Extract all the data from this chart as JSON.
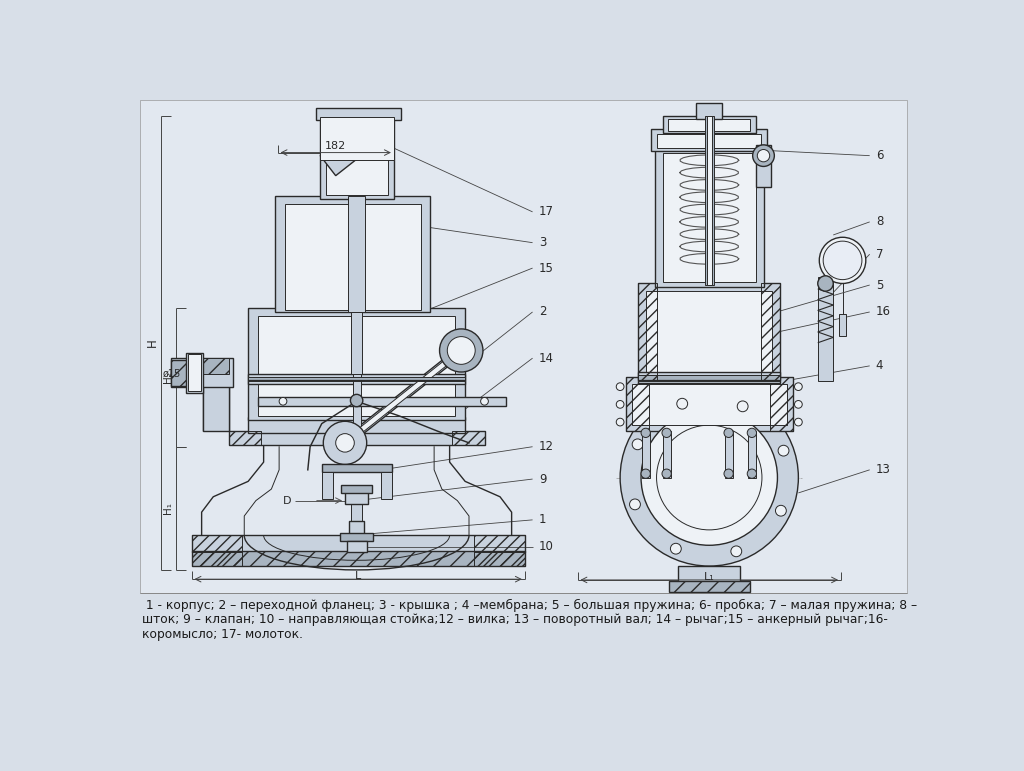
{
  "background_color": "#d8dfe8",
  "drawing_bg": "#dce4ed",
  "line_color": "#2a2a2a",
  "dim_color": "#333333",
  "hatch_color": "#555555",
  "fill_light": "#c8d2de",
  "fill_white": "#eef2f6",
  "fill_dark": "#a8b4c0",
  "legend_text_line1": " 1 - корпус; 2 – переходной фланец; 3 - крышка ; 4 –мембрана; 5 – большая пружина; 6- пробка; 7 – малая пружина; 8 –",
  "legend_text_line2": "шток; 9 – клапан; 10 – направляющая стойка;12 – вилка; 13 – поворотный вал; 14 – рычаг;15 – анкерный рычаг;16-",
  "legend_text_line3": "коромысло; 17- молоток.",
  "fig_width": 10.24,
  "fig_height": 7.71,
  "dpi": 100
}
